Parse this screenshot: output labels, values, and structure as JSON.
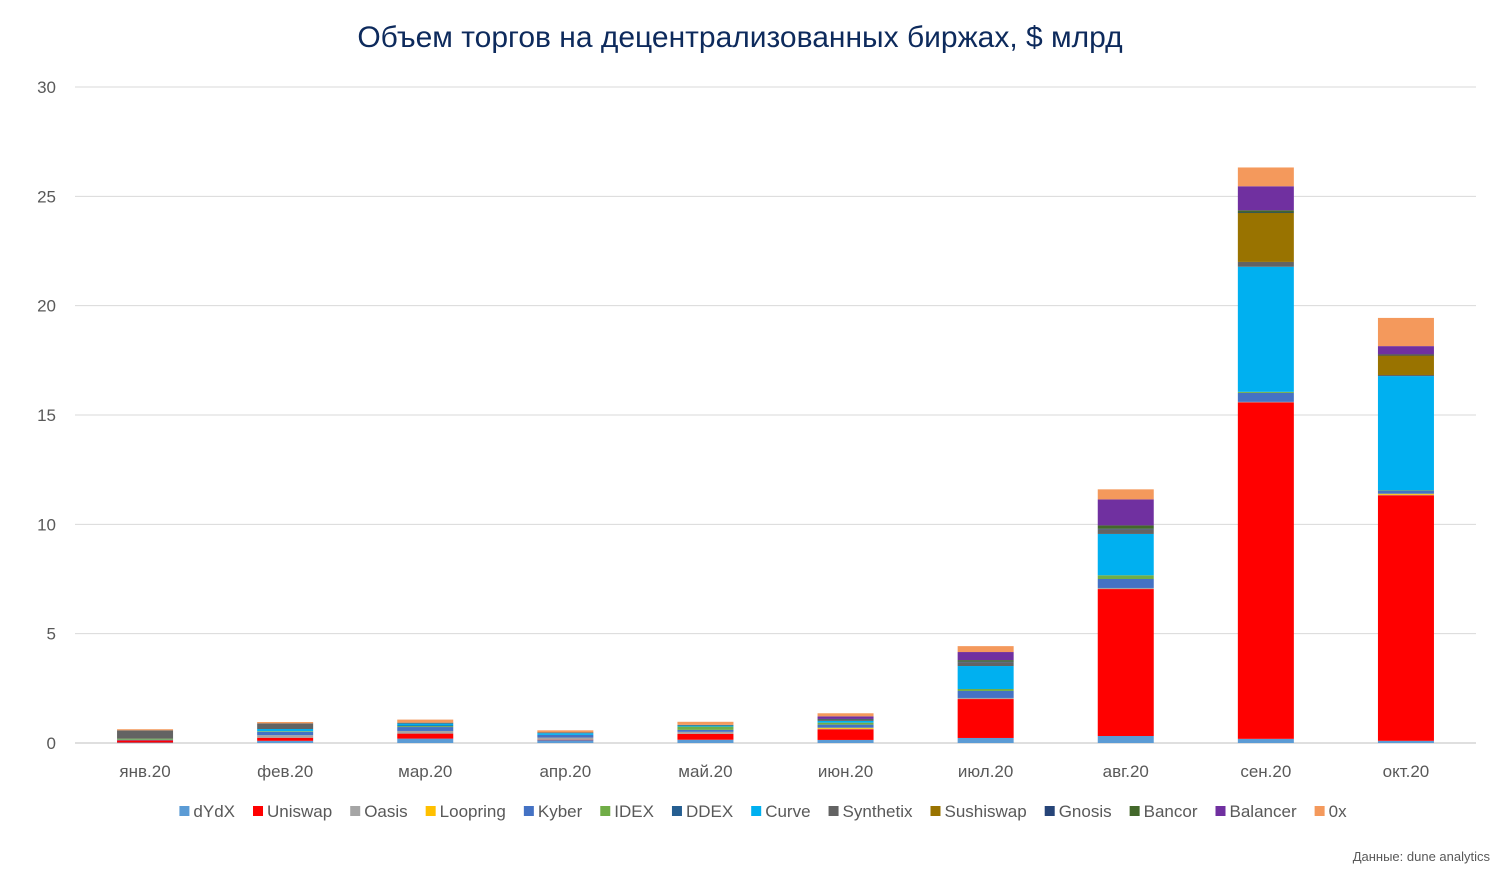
{
  "chart_data": {
    "type": "bar",
    "stacked": true,
    "title": "Объем торгов на децентрализованных биржах, $ млрд",
    "source": "Данные: dune analytics",
    "categories": [
      "янв.20",
      "фев.20",
      "мар.20",
      "апр.20",
      "май.20",
      "июн.20",
      "июл.20",
      "авг.20",
      "сен.20",
      "окт.20"
    ],
    "ylim": [
      0,
      30
    ],
    "yticks": [
      0,
      5,
      10,
      15,
      20,
      25,
      30
    ],
    "grid": true,
    "legend": "bottom",
    "series": [
      {
        "name": "dYdX",
        "color": "#5b9bd5",
        "values": [
          0.02,
          0.1,
          0.2,
          0.14,
          0.15,
          0.14,
          0.23,
          0.32,
          0.19,
          0.1
        ]
      },
      {
        "name": "Uniswap",
        "color": "#ff0000",
        "values": [
          0.1,
          0.14,
          0.23,
          0.01,
          0.27,
          0.49,
          1.78,
          6.72,
          15.39,
          11.23
        ]
      },
      {
        "name": "Oasis",
        "color": "#a5a5a5",
        "values": [
          0,
          0.12,
          0.12,
          0.1,
          0.09,
          0.02,
          0.05,
          0.05,
          0.02,
          0.02
        ]
      },
      {
        "name": "Loopring",
        "color": "#ffc000",
        "values": [
          0,
          0,
          0,
          0,
          0,
          0.05,
          0,
          0,
          0,
          0.05
        ]
      },
      {
        "name": "Kyber",
        "color": "#4472c4",
        "values": [
          0.03,
          0.15,
          0.18,
          0.12,
          0.09,
          0.14,
          0.32,
          0.41,
          0.41,
          0.15
        ]
      },
      {
        "name": "IDEX",
        "color": "#70ad47",
        "values": [
          0.05,
          0.03,
          0.04,
          0,
          0.15,
          0.09,
          0.09,
          0.17,
          0.05,
          0.01
        ]
      },
      {
        "name": "DDEX",
        "color": "#255e91",
        "values": [
          0,
          0,
          0.03,
          0,
          0,
          0,
          0,
          0,
          0,
          0
        ]
      },
      {
        "name": "Curve",
        "color": "#00b0f0",
        "values": [
          0,
          0.1,
          0.09,
          0.08,
          0.05,
          0.08,
          1.05,
          1.89,
          5.72,
          5.22
        ]
      },
      {
        "name": "Synthetix",
        "color": "#636363",
        "values": [
          0.38,
          0.26,
          0.04,
          0.04,
          0.03,
          0.05,
          0.17,
          0.21,
          0.22,
          0.05
        ]
      },
      {
        "name": "Sushiswap",
        "color": "#997300",
        "values": [
          0,
          0,
          0,
          0,
          0,
          0,
          0,
          0,
          2.24,
          0.9
        ]
      },
      {
        "name": "Gnosis",
        "color": "#264478",
        "values": [
          0,
          0,
          0,
          0,
          0,
          0.02,
          0.03,
          0.03,
          0.02,
          0.01
        ]
      },
      {
        "name": "Bancor",
        "color": "#43682b",
        "values": [
          0,
          0,
          0,
          0,
          0,
          0.02,
          0.07,
          0.15,
          0.1,
          0.03
        ]
      },
      {
        "name": "Balancer",
        "color": "#7030a0",
        "values": [
          0,
          0,
          0,
          0,
          0,
          0.12,
          0.37,
          1.19,
          1.1,
          0.38
        ]
      },
      {
        "name": "0x",
        "color": "#f4995c",
        "values": [
          0.05,
          0.06,
          0.14,
          0.09,
          0.14,
          0.14,
          0.27,
          0.46,
          0.86,
          1.29
        ]
      }
    ]
  }
}
